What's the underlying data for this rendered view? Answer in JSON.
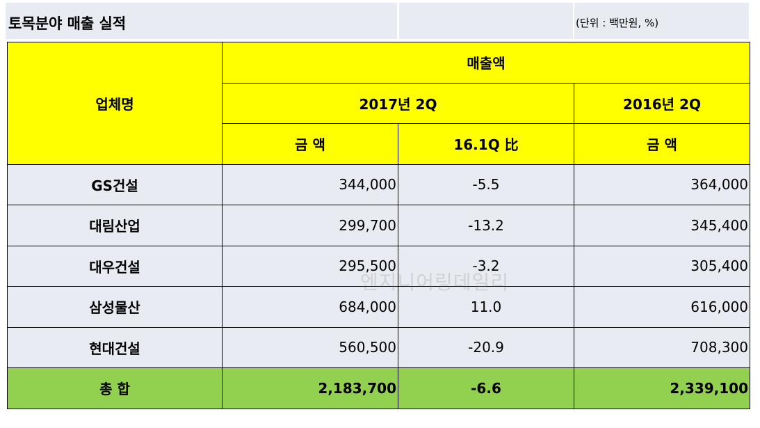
{
  "title": "토목분야 매출 실적",
  "unit": "(단위 : 백만원, %)",
  "header": {
    "company": "업체명",
    "sales": "매출액",
    "period_2017": "2017년 2Q",
    "period_2016": "2016년 2Q",
    "amount": "금 액",
    "vs_q1": "16.1Q 比",
    "amount_2016": "금 액"
  },
  "rows": [
    {
      "name": "GS건설",
      "amount2017": "344,000",
      "change": "-5.5",
      "amount2016": "364,000"
    },
    {
      "name": "대림산업",
      "amount2017": "299,700",
      "change": "-13.2",
      "amount2016": "345,400"
    },
    {
      "name": "대우건설",
      "amount2017": "295,500",
      "change": "-3.2",
      "amount2016": "305,400"
    },
    {
      "name": "삼성물산",
      "amount2017": "684,000",
      "change": "11.0",
      "amount2016": "616,000"
    },
    {
      "name": "현대건설",
      "amount2017": "560,500",
      "change": "-20.9",
      "amount2016": "708,300"
    }
  ],
  "total": {
    "name": "총 합",
    "amount2017": "2,183,700",
    "change": "-6.6",
    "amount2016": "2,339,100"
  },
  "watermark": "엔지니어링데일리"
}
